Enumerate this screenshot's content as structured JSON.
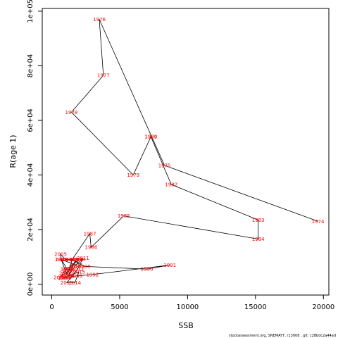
{
  "chart_data": {
    "type": "line",
    "xlabel": "SSB",
    "ylabel": "R(age 1)",
    "xlim": [
      -700,
      20400
    ],
    "ylim": [
      -4000,
      101000
    ],
    "x_ticks": [
      0,
      5000,
      10000,
      15000,
      20000
    ],
    "x_tick_labels": [
      "0",
      "5000",
      "10000",
      "15000",
      "20000"
    ],
    "y_ticks": [
      0,
      20000,
      40000,
      60000,
      80000,
      100000
    ],
    "y_tick_labels": [
      "0e+00",
      "2e+04",
      "4e+04",
      "6e+04",
      "8e+04",
      "1e+05"
    ],
    "grid": false,
    "line_color": "#000000",
    "label_color": "#ff0000",
    "points": [
      {
        "year": "1974",
        "x": 19600,
        "y": 23000
      },
      {
        "year": "1975",
        "x": 8300,
        "y": 43500
      },
      {
        "year": "1976",
        "x": 3500,
        "y": 97000
      },
      {
        "year": "1977",
        "x": 3800,
        "y": 76500
      },
      {
        "year": "1978",
        "x": 1450,
        "y": 63000
      },
      {
        "year": "1979",
        "x": 6000,
        "y": 40000
      },
      {
        "year": "1980",
        "x": 7300,
        "y": 54000
      },
      {
        "year": "1981",
        "x": 7300,
        "y": 54000
      },
      {
        "year": "1982",
        "x": 8800,
        "y": 36500
      },
      {
        "year": "1983",
        "x": 15200,
        "y": 23500
      },
      {
        "year": "1984",
        "x": 15200,
        "y": 16500
      },
      {
        "year": "1985",
        "x": 5300,
        "y": 25000
      },
      {
        "year": "1986",
        "x": 2900,
        "y": 13500
      },
      {
        "year": "1987",
        "x": 2800,
        "y": 18500
      },
      {
        "year": "1988",
        "x": 1500,
        "y": 9000
      },
      {
        "year": "1989",
        "x": 2400,
        "y": 6500
      },
      {
        "year": "1990",
        "x": 7000,
        "y": 5500
      },
      {
        "year": "1991",
        "x": 8700,
        "y": 7000
      },
      {
        "year": "1992",
        "x": 3000,
        "y": 3500
      },
      {
        "year": "1993",
        "x": 1800,
        "y": 3000
      },
      {
        "year": "1994",
        "x": 900,
        "y": 2200
      },
      {
        "year": "1995",
        "x": 1200,
        "y": 5000
      },
      {
        "year": "1996",
        "x": 700,
        "y": 9000
      },
      {
        "year": "1997",
        "x": 1800,
        "y": 7000
      },
      {
        "year": "1998",
        "x": 2000,
        "y": 9000
      },
      {
        "year": "1999",
        "x": 1100,
        "y": 5500
      },
      {
        "year": "2000",
        "x": 600,
        "y": 2500
      },
      {
        "year": "2001",
        "x": 1000,
        "y": 4000
      },
      {
        "year": "2002",
        "x": 1300,
        "y": 5500
      },
      {
        "year": "2003",
        "x": 1500,
        "y": 9000
      },
      {
        "year": "2004",
        "x": 1000,
        "y": 9000
      },
      {
        "year": "2005",
        "x": 650,
        "y": 11000
      },
      {
        "year": "2006",
        "x": 700,
        "y": 9000
      },
      {
        "year": "2007",
        "x": 1100,
        "y": 3500
      },
      {
        "year": "2008",
        "x": 1800,
        "y": 9000
      },
      {
        "year": "2009",
        "x": 1200,
        "y": 3000
      },
      {
        "year": "2010",
        "x": 1700,
        "y": 6500
      },
      {
        "year": "2011",
        "x": 2300,
        "y": 9500
      },
      {
        "year": "2012",
        "x": 1900,
        "y": 5500
      },
      {
        "year": "2013",
        "x": 1100,
        "y": 500
      },
      {
        "year": "2014",
        "x": 1700,
        "y": 500
      },
      {
        "year": "2015",
        "x": 2000,
        "y": 4500
      },
      {
        "year": "2016",
        "x": 1000,
        "y": 2500
      }
    ]
  },
  "footer_text": "stockassessment.org, SNEMAYT, r13008 , git: c28bdc2a44ad"
}
